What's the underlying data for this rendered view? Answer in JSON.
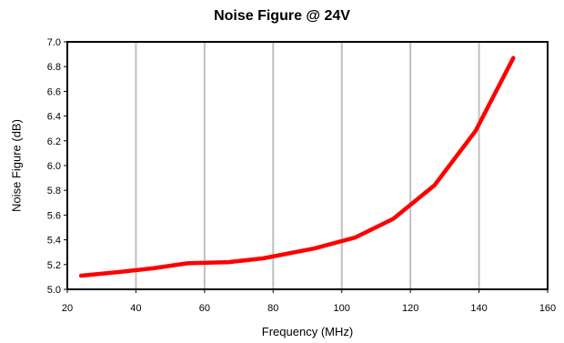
{
  "chart_data": {
    "type": "line",
    "title": "Noise Figure @ 24V",
    "xlabel": "Frequency (MHz)",
    "ylabel": "Noise Figure (dB)",
    "xlim": [
      20,
      160
    ],
    "ylim": [
      5.0,
      7.0
    ],
    "xticks": [
      20,
      40,
      60,
      80,
      100,
      120,
      140,
      160
    ],
    "yticks": [
      "5.0",
      "5.2",
      "5.4",
      "5.6",
      "5.8",
      "6.0",
      "6.2",
      "6.4",
      "6.6",
      "6.8",
      "7.0"
    ],
    "grid": "vertical",
    "series": [
      {
        "color": "#ff0000",
        "x": [
          24,
          35,
          45,
          55,
          67,
          77,
          92,
          104,
          115,
          127,
          139,
          150
        ],
        "y": [
          5.11,
          5.14,
          5.17,
          5.21,
          5.22,
          5.25,
          5.33,
          5.42,
          5.57,
          5.84,
          6.28,
          6.87
        ]
      }
    ]
  }
}
